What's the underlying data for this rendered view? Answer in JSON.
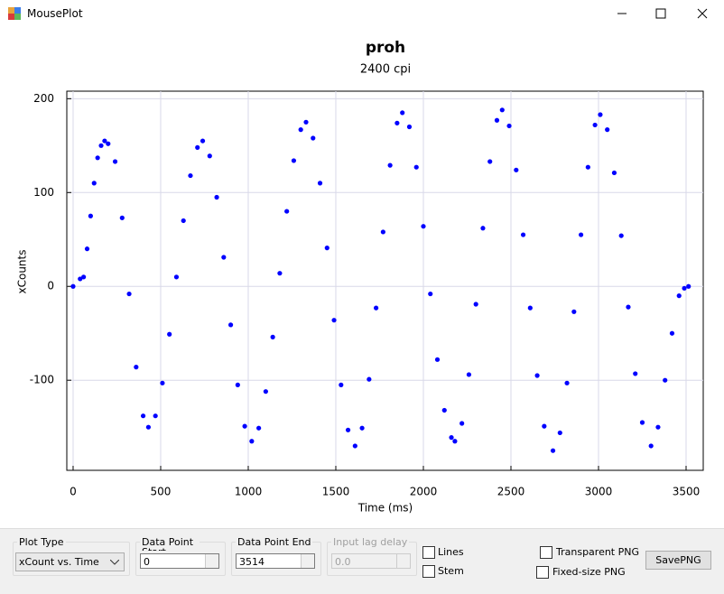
{
  "window": {
    "title": "MousePlot"
  },
  "chart_data": {
    "type": "line",
    "markers": true,
    "title": "proh",
    "subtitle": "2400 cpi",
    "x_label": "Time (ms)",
    "y_label": "xCounts",
    "color": "#0000ff",
    "grid": true,
    "x": [
      0,
      40,
      60,
      80,
      100,
      120,
      140,
      160,
      180,
      200,
      240,
      280,
      320,
      360,
      400,
      430,
      470,
      510,
      550,
      590,
      630,
      670,
      710,
      740,
      780,
      820,
      860,
      900,
      940,
      980,
      1020,
      1060,
      1100,
      1140,
      1180,
      1220,
      1260,
      1300,
      1330,
      1370,
      1410,
      1450,
      1490,
      1530,
      1570,
      1610,
      1650,
      1690,
      1730,
      1770,
      1810,
      1850,
      1880,
      1920,
      1960,
      2000,
      2040,
      2080,
      2120,
      2160,
      2180,
      2220,
      2260,
      2300,
      2340,
      2380,
      2420,
      2450,
      2490,
      2530,
      2570,
      2610,
      2650,
      2690,
      2740,
      2780,
      2820,
      2860,
      2900,
      2940,
      2980,
      3010,
      3050,
      3090,
      3130,
      3170,
      3210,
      3250,
      3300,
      3340,
      3380,
      3420,
      3460,
      3490,
      3514
    ],
    "values": [
      0,
      8,
      10,
      40,
      75,
      110,
      137,
      150,
      155,
      152,
      133,
      73,
      -8,
      -86,
      -138,
      -150,
      -138,
      -103,
      -51,
      10,
      70,
      118,
      148,
      155,
      139,
      95,
      31,
      -41,
      -105,
      -149,
      -165,
      -151,
      -112,
      -54,
      14,
      80,
      134,
      167,
      175,
      158,
      110,
      41,
      -36,
      -105,
      -153,
      -170,
      -151,
      -99,
      -23,
      58,
      129,
      174,
      185,
      170,
      127,
      64,
      -8,
      -78,
      -132,
      -161,
      -165,
      -146,
      -94,
      -19,
      62,
      133,
      177,
      188,
      171,
      124,
      55,
      -23,
      -95,
      -149,
      -175,
      -156,
      -103,
      -27,
      55,
      127,
      172,
      183,
      167,
      121,
      54,
      -22,
      -93,
      -145,
      -170,
      -150,
      -100,
      -50,
      -10,
      -2,
      0
    ],
    "xlim": [
      -36,
      3598
    ],
    "ylim": [
      -196,
      208
    ],
    "xticks": [
      0,
      500,
      1000,
      1500,
      2000,
      2500,
      3000,
      3500
    ],
    "yticks": [
      -100,
      0,
      100,
      200
    ]
  },
  "controls": {
    "plot_type": {
      "label": "Plot Type",
      "value": "xCount vs. Time"
    },
    "data_point_start": {
      "label": "Data Point Start",
      "value": "0"
    },
    "data_point_end": {
      "label": "Data Point End",
      "value": "3514"
    },
    "input_lag_delay": {
      "label": "Input lag delay",
      "value": "0.0"
    },
    "lines": {
      "label": "Lines",
      "checked": false
    },
    "stem": {
      "label": "Stem",
      "checked": false
    },
    "transparent_png": {
      "label": "Transparent PNG",
      "checked": false
    },
    "fixed_size_png": {
      "label": "Fixed-size PNG",
      "checked": false
    },
    "save_button": {
      "label": "SavePNG"
    }
  }
}
